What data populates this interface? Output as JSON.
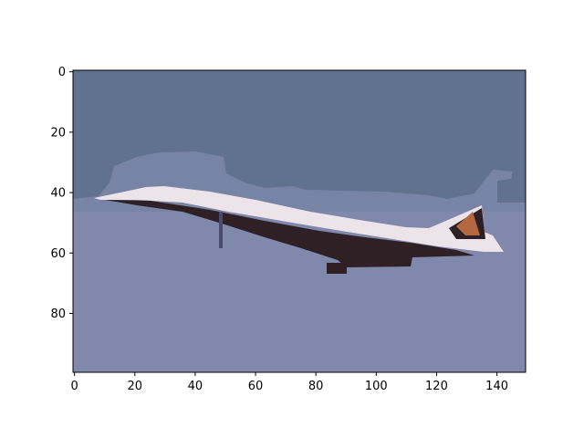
{
  "image": {
    "description_type": "pixelated-image-plot",
    "axes": {
      "x_ticks": [
        "0",
        "20",
        "40",
        "60",
        "80",
        "100",
        "120",
        "140"
      ],
      "y_ticks": [
        "0",
        "20",
        "40",
        "60",
        "80"
      ],
      "x_tick_values": [
        0,
        20,
        40,
        60,
        80,
        100,
        120,
        140
      ],
      "y_tick_values": [
        0,
        20,
        40,
        60,
        80
      ],
      "xlim": [
        -0.5,
        149.5
      ],
      "ylim": [
        99.5,
        -0.5
      ]
    },
    "colors": {
      "sky_top": "#617290",
      "sky_bottom": "#8088ab",
      "haze": "#7784a6",
      "fuselage_dark": "#2e2024",
      "wing_light": "#ede4ea",
      "tail_accent": "#b4683f",
      "shadow": "#4a4a6a"
    }
  }
}
